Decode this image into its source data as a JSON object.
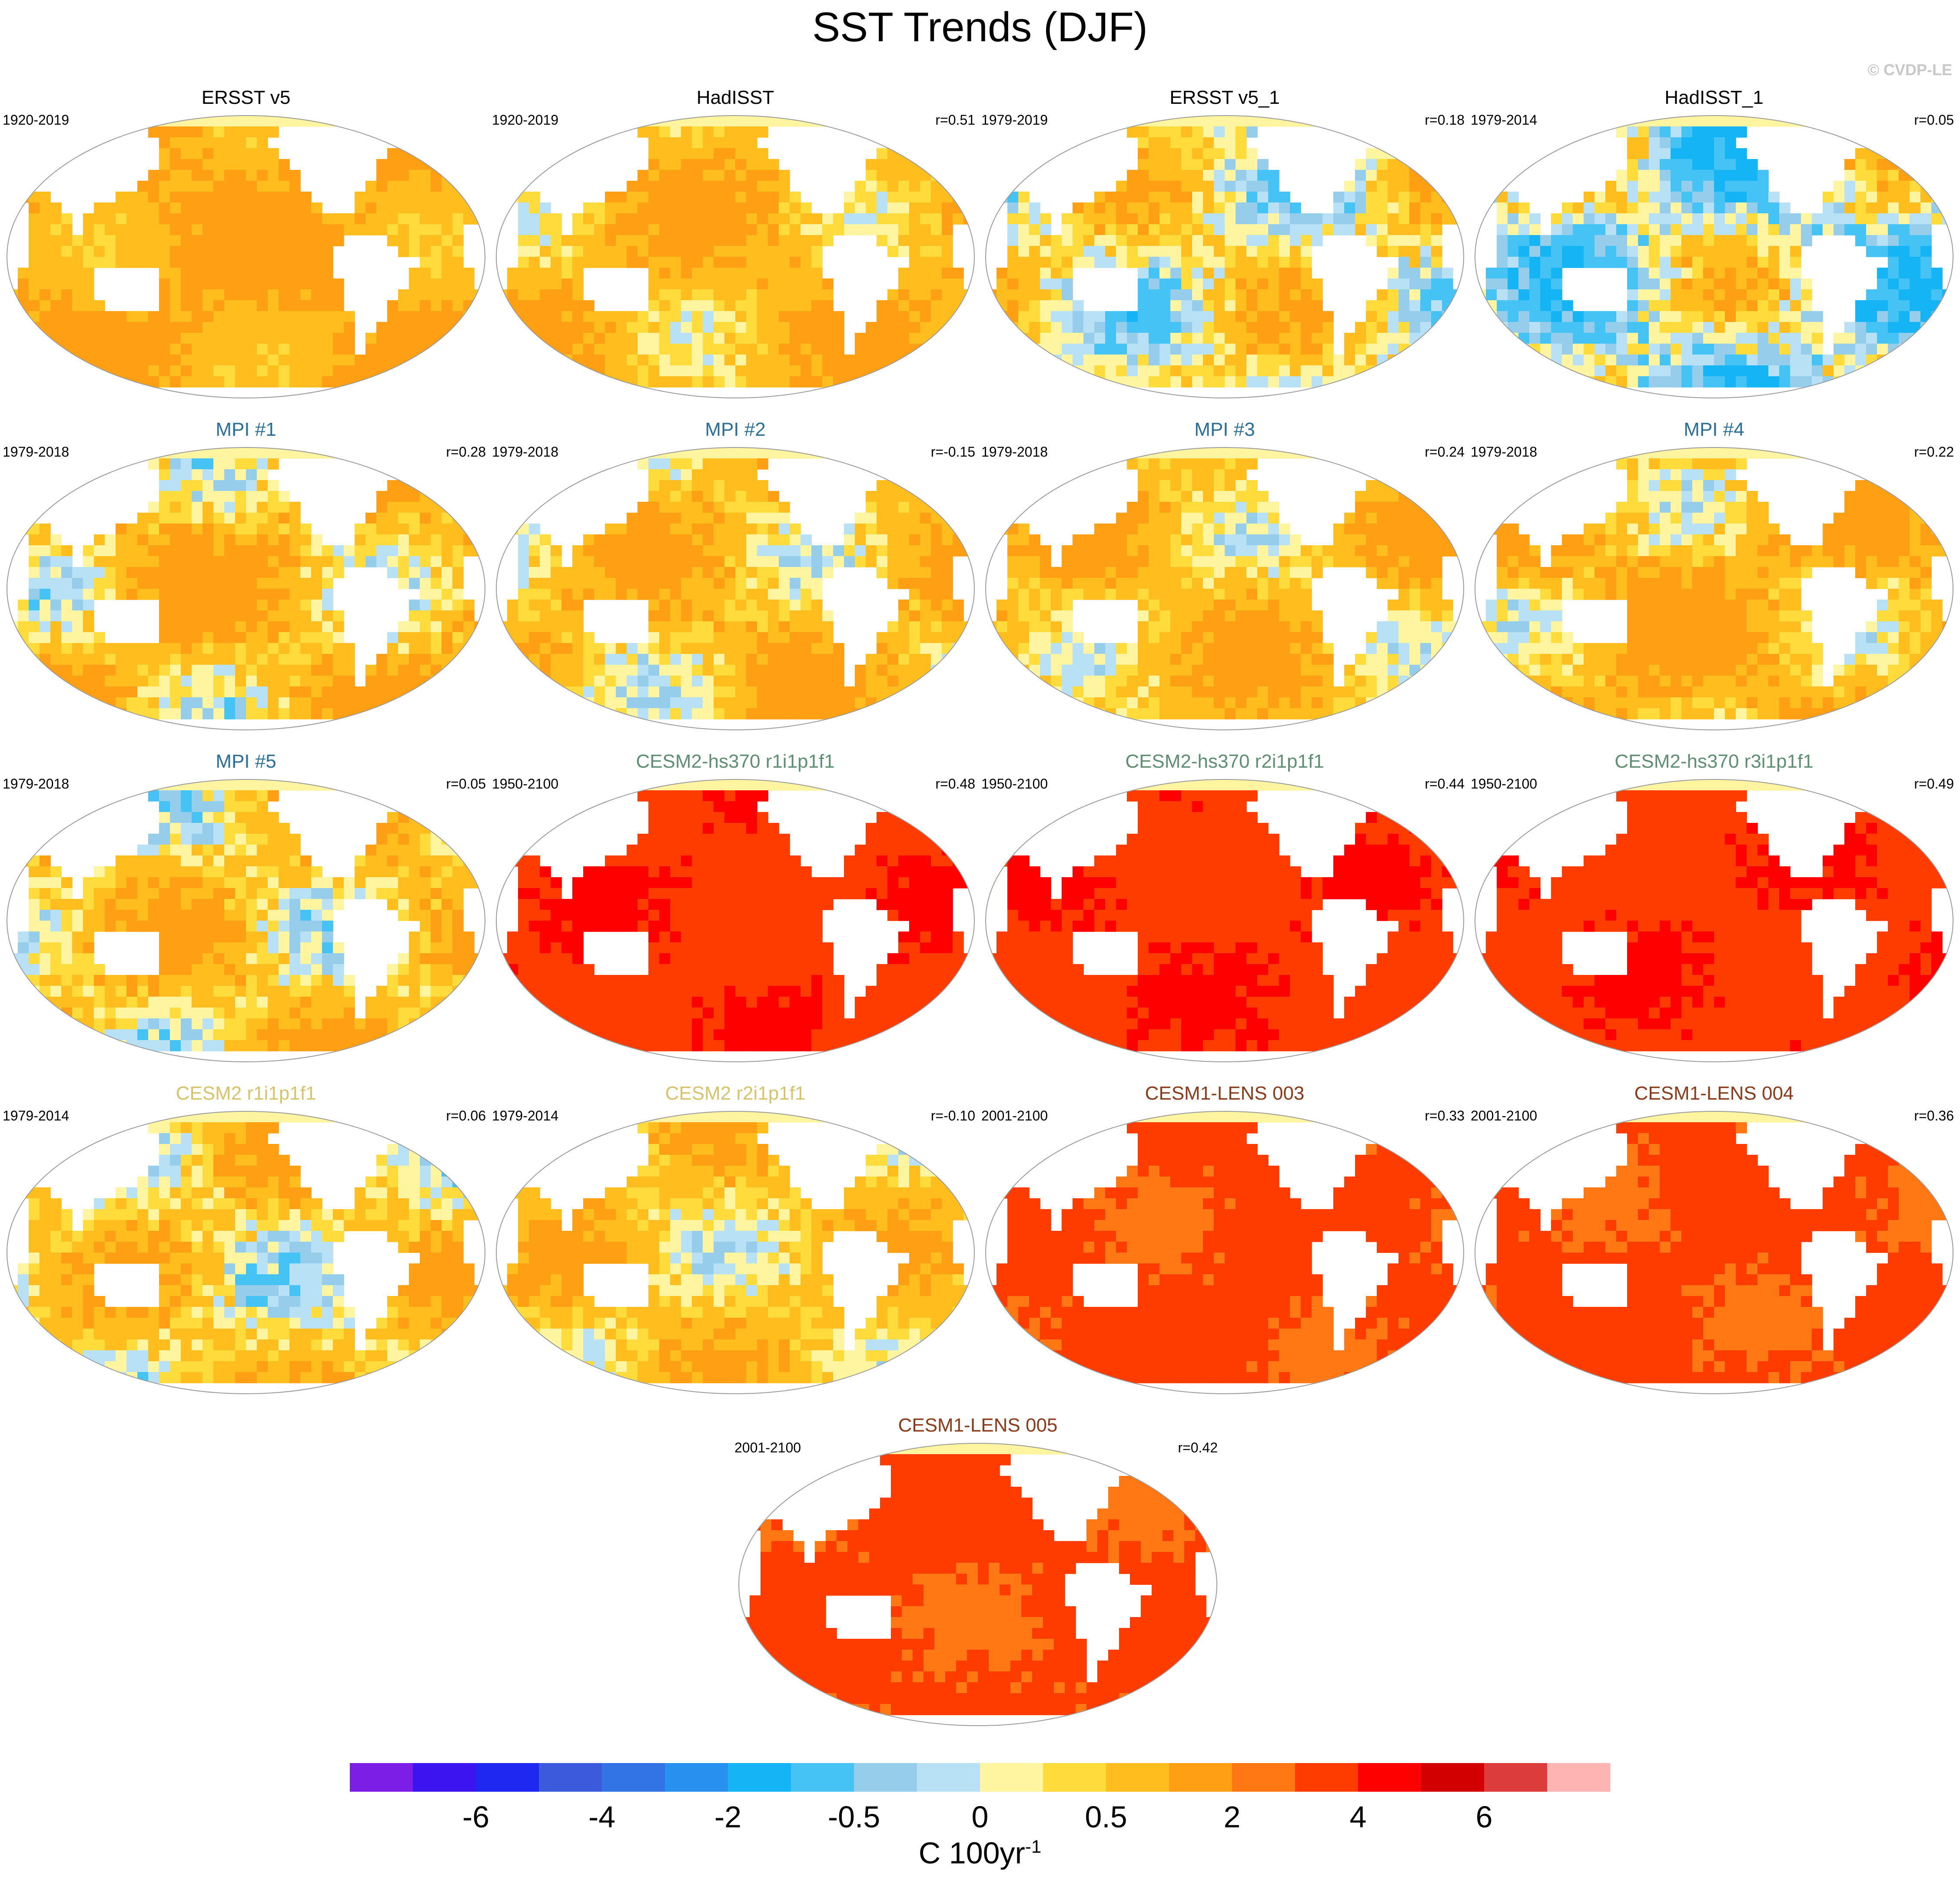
{
  "title": "SST Trends (DJF)",
  "watermark": "© CVDP-LE",
  "chart_data": {
    "type": "heatmap",
    "title": "SST Trends (DJF)",
    "projection": "global map (Robinson-like)",
    "panels": [
      {
        "title": "ERSST v5",
        "title_color": "#000000",
        "period": "1920-2019",
        "r": "",
        "field": {
          "mean": 1.0,
          "spread": 0.6
        }
      },
      {
        "title": "HadISST",
        "title_color": "#000000",
        "period": "1920-2019",
        "r": "r=0.51",
        "field": {
          "mean": 0.8,
          "spread": 0.9
        }
      },
      {
        "title": "ERSST v5_1",
        "title_color": "#000000",
        "period": "1979-2019",
        "r": "r=0.18",
        "field": {
          "mean": 0.3,
          "spread": 1.2
        }
      },
      {
        "title": "HadISST_1",
        "title_color": "#000000",
        "period": "1979-2014",
        "r": "r=0.05",
        "field": {
          "mean": -0.1,
          "spread": 1.5
        }
      },
      {
        "title": "MPI #1",
        "title_color": "#2a6f97",
        "period": "1979-2018",
        "r": "r=0.28",
        "field": {
          "mean": 0.7,
          "spread": 1.2
        }
      },
      {
        "title": "MPI #2",
        "title_color": "#2a6f97",
        "period": "1979-2018",
        "r": "r=-0.15",
        "field": {
          "mean": 0.7,
          "spread": 1.1
        }
      },
      {
        "title": "MPI #3",
        "title_color": "#2a6f97",
        "period": "1979-2018",
        "r": "r=0.24",
        "field": {
          "mean": 0.7,
          "spread": 1.0
        }
      },
      {
        "title": "MPI #4",
        "title_color": "#2a6f97",
        "period": "1979-2018",
        "r": "r=0.22",
        "field": {
          "mean": 0.8,
          "spread": 1.1
        }
      },
      {
        "title": "MPI #5",
        "title_color": "#2a6f97",
        "period": "1979-2018",
        "r": "r=0.05",
        "field": {
          "mean": 0.6,
          "spread": 1.2
        }
      },
      {
        "title": "CESM2-hs370 r1i1p1f1",
        "title_color": "#5f8f72",
        "period": "1950-2100",
        "r": "r=0.48",
        "field": {
          "mean": 3.8,
          "spread": 0.6
        }
      },
      {
        "title": "CESM2-hs370 r2i1p1f1",
        "title_color": "#5f8f72",
        "period": "1950-2100",
        "r": "r=0.44",
        "field": {
          "mean": 3.8,
          "spread": 0.6
        }
      },
      {
        "title": "CESM2-hs370 r3i1p1f1",
        "title_color": "#5f8f72",
        "period": "1950-2100",
        "r": "r=0.49",
        "field": {
          "mean": 3.8,
          "spread": 0.6
        }
      },
      {
        "title": "CESM2 r1i1p1f1",
        "title_color": "#d8c36a",
        "period": "1979-2014",
        "r": "r=0.06",
        "field": {
          "mean": 0.5,
          "spread": 1.2
        }
      },
      {
        "title": "CESM2 r2i1p1f1",
        "title_color": "#d8c36a",
        "period": "1979-2014",
        "r": "r=-0.10",
        "field": {
          "mean": 0.6,
          "spread": 1.0
        }
      },
      {
        "title": "CESM1-LENS 003",
        "title_color": "#8b3a1a",
        "period": "2001-2100",
        "r": "r=0.33",
        "field": {
          "mean": 3.2,
          "spread": 0.6
        }
      },
      {
        "title": "CESM1-LENS 004",
        "title_color": "#8b3a1a",
        "period": "2001-2100",
        "r": "r=0.36",
        "field": {
          "mean": 3.2,
          "spread": 0.6
        }
      },
      {
        "title": "CESM1-LENS 005",
        "title_color": "#8b3a1a",
        "period": "2001-2100",
        "r": "r=0.42",
        "field": {
          "mean": 3.2,
          "spread": 0.6
        }
      }
    ],
    "colorbar": {
      "label_main": "C 100yr",
      "label_exponent": "-1",
      "colors": [
        "#7d1ee6",
        "#3c14f0",
        "#1e28f0",
        "#3c5adc",
        "#3273e6",
        "#2891f0",
        "#14b4f5",
        "#46c3f5",
        "#96cdeb",
        "#b9e1f5",
        "#fff5a0",
        "#ffdc3c",
        "#ffbe1e",
        "#ffa014",
        "#ff7814",
        "#ff3c00",
        "#ff0000",
        "#d20000",
        "#dc3c3c",
        "#ffb4b4"
      ],
      "boundaries": [
        -8,
        -7,
        -6,
        -5,
        -4,
        -3,
        -2,
        -1,
        -0.5,
        -0.25,
        0,
        0.25,
        0.5,
        1,
        2,
        3,
        4,
        5,
        6,
        7,
        8
      ],
      "tick_labels": [
        "-6",
        "-4",
        "-2",
        "-0.5",
        "0",
        "0.5",
        "2",
        "4",
        "6"
      ]
    }
  }
}
